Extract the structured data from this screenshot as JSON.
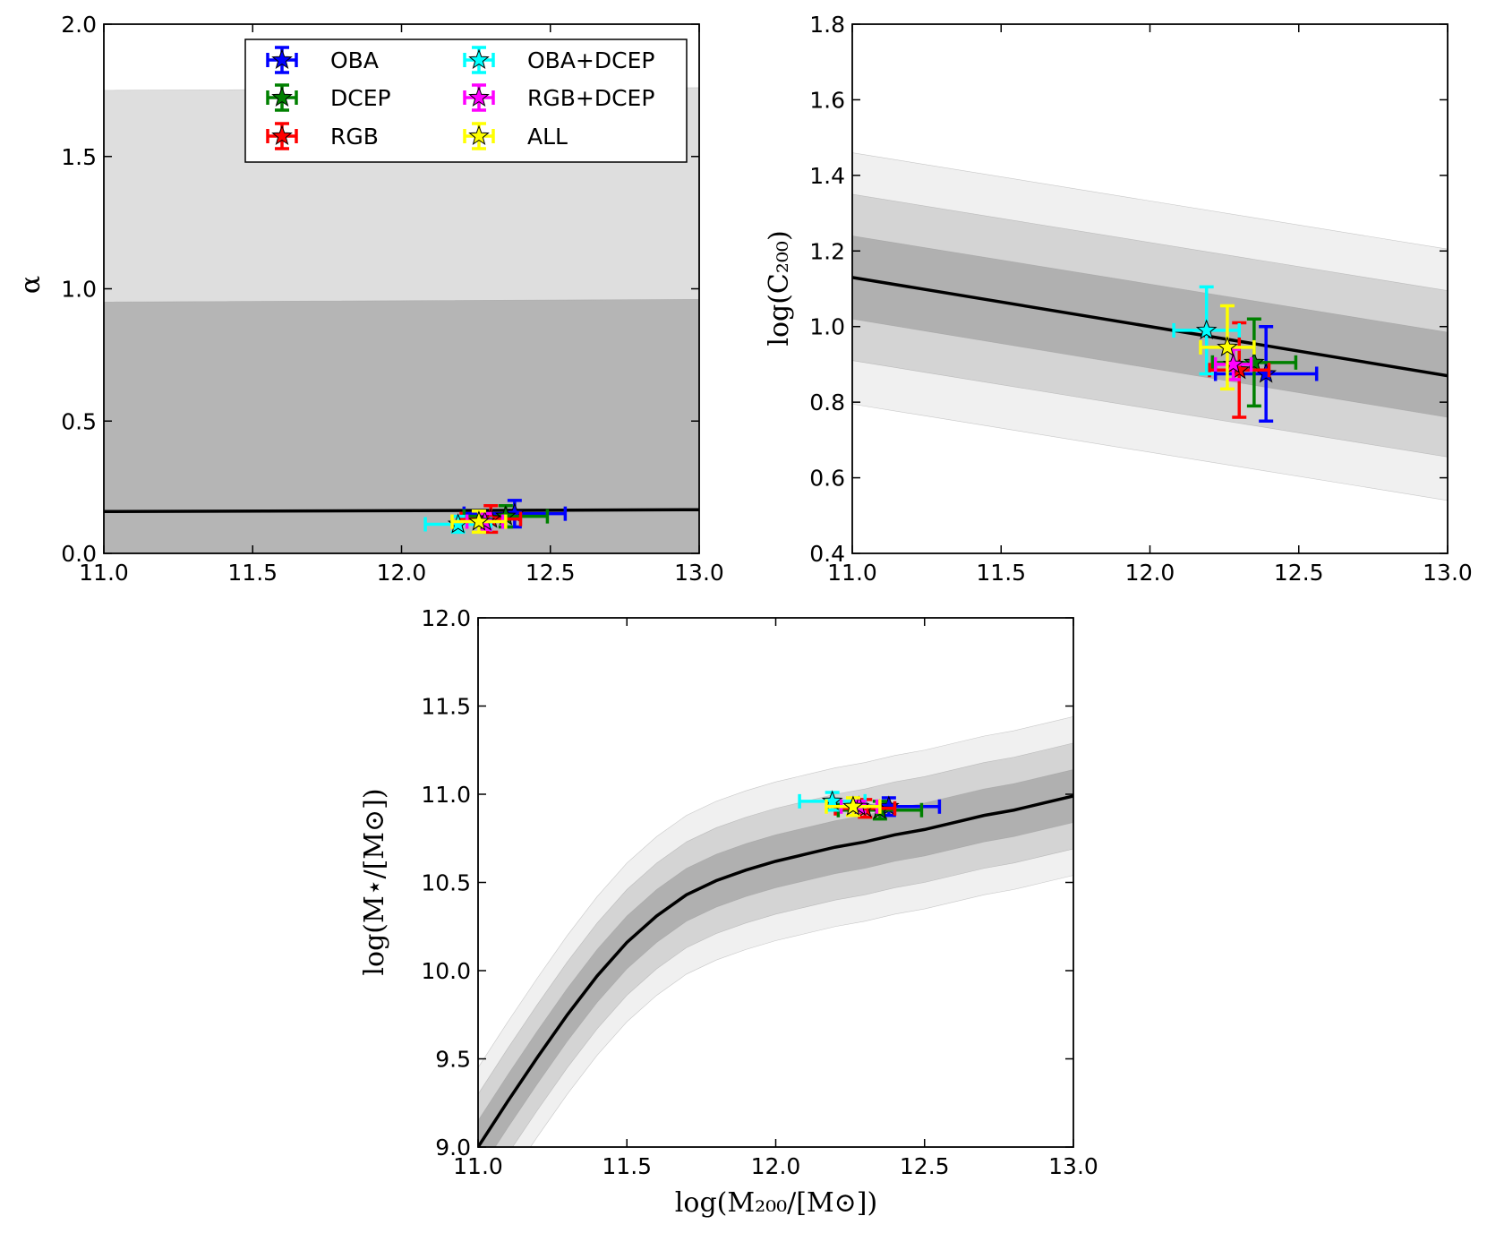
{
  "chart_data": [
    {
      "type": "scatter",
      "panel": "alpha",
      "xlabel": "",
      "ylabel": "α",
      "xlim": [
        11.0,
        13.0
      ],
      "ylim": [
        0.0,
        2.0
      ],
      "xticks": [
        "11.0",
        "11.5",
        "12.0",
        "12.5",
        "13.0"
      ],
      "yticks": [
        "0.0",
        "0.5",
        "1.0",
        "1.5",
        "2.0"
      ],
      "bands": [
        {
          "name": "outer",
          "color": "#dedede",
          "lower": {
            "x": [
              11.0,
              13.0
            ],
            "y": [
              0.0,
              0.0
            ]
          },
          "upper": {
            "x": [
              11.0,
              13.0
            ],
            "y": [
              1.75,
              1.76
            ]
          }
        },
        {
          "name": "inner",
          "color": "#b5b5b5",
          "lower": {
            "x": [
              11.0,
              13.0
            ],
            "y": [
              0.0,
              0.0
            ]
          },
          "upper": {
            "x": [
              11.0,
              13.0
            ],
            "y": [
              0.95,
              0.96
            ]
          }
        }
      ],
      "line": {
        "x": [
          11.0,
          13.0
        ],
        "y": [
          0.158,
          0.165
        ]
      },
      "points": [
        {
          "name": "OBA",
          "x": 12.38,
          "y": 0.15,
          "xerr": 0.17,
          "yerr": 0.05
        },
        {
          "name": "DCEP",
          "x": 12.35,
          "y": 0.14,
          "xerr": 0.14,
          "yerr": 0.04
        },
        {
          "name": "RGB",
          "x": 12.3,
          "y": 0.13,
          "xerr": 0.1,
          "yerr": 0.05
        },
        {
          "name": "OBA+DCEP",
          "x": 12.19,
          "y": 0.11,
          "xerr": 0.11,
          "yerr": 0.03
        },
        {
          "name": "RGB+DCEP",
          "x": 12.28,
          "y": 0.12,
          "xerr": 0.06,
          "yerr": 0.03
        },
        {
          "name": "ALL",
          "x": 12.26,
          "y": 0.12,
          "xerr": 0.09,
          "yerr": 0.04
        }
      ]
    },
    {
      "type": "scatter",
      "panel": "concentration",
      "xlabel": "",
      "ylabel": "log(C₂₀₀)",
      "xlim": [
        11.0,
        13.0
      ],
      "ylim": [
        0.4,
        1.8
      ],
      "xticks": [
        "11.0",
        "11.5",
        "12.0",
        "12.5",
        "13.0"
      ],
      "yticks": [
        "0.4",
        "0.6",
        "0.8",
        "1.0",
        "1.2",
        "1.4",
        "1.6",
        "1.8"
      ],
      "bands": [
        {
          "name": "3-sigma",
          "color": "#f0f0f0",
          "lower": {
            "x": [
              11.0,
              13.0
            ],
            "y": [
              0.795,
              0.54
            ]
          },
          "upper": {
            "x": [
              11.0,
              13.0
            ],
            "y": [
              1.46,
              1.205
            ]
          }
        },
        {
          "name": "2-sigma",
          "color": "#d4d4d4",
          "lower": {
            "x": [
              11.0,
              13.0
            ],
            "y": [
              0.91,
              0.655
            ]
          },
          "upper": {
            "x": [
              11.0,
              13.0
            ],
            "y": [
              1.35,
              1.095
            ]
          }
        },
        {
          "name": "1-sigma",
          "color": "#b0b0b0",
          "lower": {
            "x": [
              11.0,
              13.0
            ],
            "y": [
              1.02,
              0.76
            ]
          },
          "upper": {
            "x": [
              11.0,
              13.0
            ],
            "y": [
              1.24,
              0.985
            ]
          }
        }
      ],
      "line": {
        "x": [
          11.0,
          13.0
        ],
        "y": [
          1.13,
          0.87
        ]
      },
      "points": [
        {
          "name": "OBA",
          "x": 12.39,
          "y": 0.875,
          "xerr": 0.17,
          "yerr": 0.125
        },
        {
          "name": "DCEP",
          "x": 12.35,
          "y": 0.905,
          "xerr": 0.14,
          "yerr": 0.115
        },
        {
          "name": "RGB",
          "x": 12.3,
          "y": 0.885,
          "xerr": 0.1,
          "yerr": 0.125
        },
        {
          "name": "OBA+DCEP",
          "x": 12.19,
          "y": 0.99,
          "xerr": 0.11,
          "yerr": 0.115
        },
        {
          "name": "RGB+DCEP",
          "x": 12.28,
          "y": 0.9,
          "xerr": 0.06,
          "yerr": 0.04
        },
        {
          "name": "ALL",
          "x": 12.26,
          "y": 0.945,
          "xerr": 0.09,
          "yerr": 0.11
        }
      ]
    },
    {
      "type": "scatter",
      "panel": "stellar-mass",
      "xlabel": "log(M₂₀₀/[M⊙])",
      "ylabel": "log(M⋆/[M⊙])",
      "xlim": [
        11.0,
        13.0
      ],
      "ylim": [
        9.0,
        12.0
      ],
      "xticks": [
        "11.0",
        "11.5",
        "12.0",
        "12.5",
        "13.0"
      ],
      "yticks": [
        "9.0",
        "9.5",
        "10.0",
        "10.5",
        "11.0",
        "11.5",
        "12.0"
      ],
      "curve": {
        "x": [
          11.0,
          11.1,
          11.2,
          11.3,
          11.4,
          11.5,
          11.6,
          11.7,
          11.8,
          11.9,
          12.0,
          12.1,
          12.2,
          12.3,
          12.4,
          12.5,
          12.6,
          12.7,
          12.8,
          12.9,
          13.0
        ],
        "y": [
          9.0,
          9.26,
          9.51,
          9.75,
          9.97,
          10.16,
          10.31,
          10.43,
          10.51,
          10.57,
          10.62,
          10.66,
          10.7,
          10.73,
          10.77,
          10.8,
          10.84,
          10.88,
          10.91,
          10.95,
          10.99
        ]
      },
      "band_offsets": [
        {
          "name": "3-sigma",
          "color": "#f0f0f0",
          "offset": 0.45
        },
        {
          "name": "2-sigma",
          "color": "#d4d4d4",
          "offset": 0.3
        },
        {
          "name": "1-sigma",
          "color": "#b0b0b0",
          "offset": 0.15
        }
      ],
      "points": [
        {
          "name": "OBA",
          "x": 12.38,
          "y": 10.93,
          "xerr": 0.17,
          "yerr": 0.05
        },
        {
          "name": "DCEP",
          "x": 12.35,
          "y": 10.91,
          "xerr": 0.14,
          "yerr": 0.05
        },
        {
          "name": "RGB",
          "x": 12.3,
          "y": 10.92,
          "xerr": 0.1,
          "yerr": 0.05
        },
        {
          "name": "OBA+DCEP",
          "x": 12.19,
          "y": 10.96,
          "xerr": 0.11,
          "yerr": 0.05
        },
        {
          "name": "RGB+DCEP",
          "x": 12.28,
          "y": 10.93,
          "xerr": 0.06,
          "yerr": 0.03
        },
        {
          "name": "ALL",
          "x": 12.26,
          "y": 10.93,
          "xerr": 0.09,
          "yerr": 0.05
        }
      ]
    }
  ],
  "legend": {
    "placement": "top-right of first panel",
    "entries": [
      {
        "name": "OBA",
        "color": "#0000ff"
      },
      {
        "name": "DCEP",
        "color": "#008000"
      },
      {
        "name": "RGB",
        "color": "#ff0000"
      },
      {
        "name": "OBA+DCEP",
        "color": "#00ffff"
      },
      {
        "name": "RGB+DCEP",
        "color": "#ff00ff"
      },
      {
        "name": "ALL",
        "color": "#ffff00"
      }
    ]
  }
}
